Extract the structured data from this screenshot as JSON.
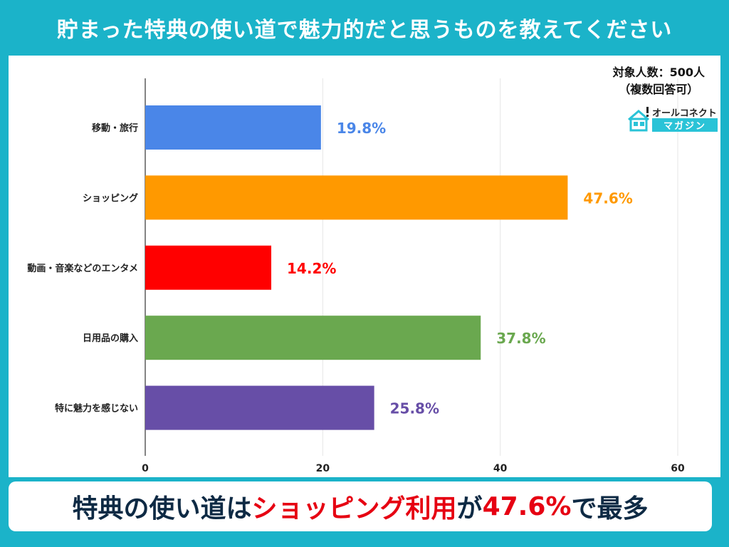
{
  "title": "貯まった特典の使い道で魅力的だと思うものを教えてください",
  "respondents": {
    "line1": "対象人数：500人",
    "line2": "（複数回答可）"
  },
  "logo": {
    "top": "オールコネクト",
    "bottom": "マガジン"
  },
  "banner": {
    "part1": "特典の使い道は",
    "part2": "ショッピング利用",
    "part3": "が",
    "part4": "47.6%",
    "part5": "で最多"
  },
  "chart_data": {
    "type": "bar",
    "orientation": "horizontal",
    "categories": [
      "移動・旅行",
      "ショッピング",
      "動画・音楽などのエンタメ",
      "日用品の購入",
      "特に魅力を感じない"
    ],
    "values": [
      19.8,
      47.6,
      14.2,
      37.8,
      25.8
    ],
    "value_labels": [
      "19.8%",
      "47.6%",
      "14.2%",
      "37.8%",
      "25.8%"
    ],
    "colors": [
      "#4a86e8",
      "#ff9900",
      "#ff0000",
      "#6aa84f",
      "#674ea7"
    ],
    "x_ticks": [
      "0",
      "20",
      "40",
      "60"
    ],
    "xlim": [
      0,
      60
    ],
    "grid": true,
    "legend": "none"
  }
}
